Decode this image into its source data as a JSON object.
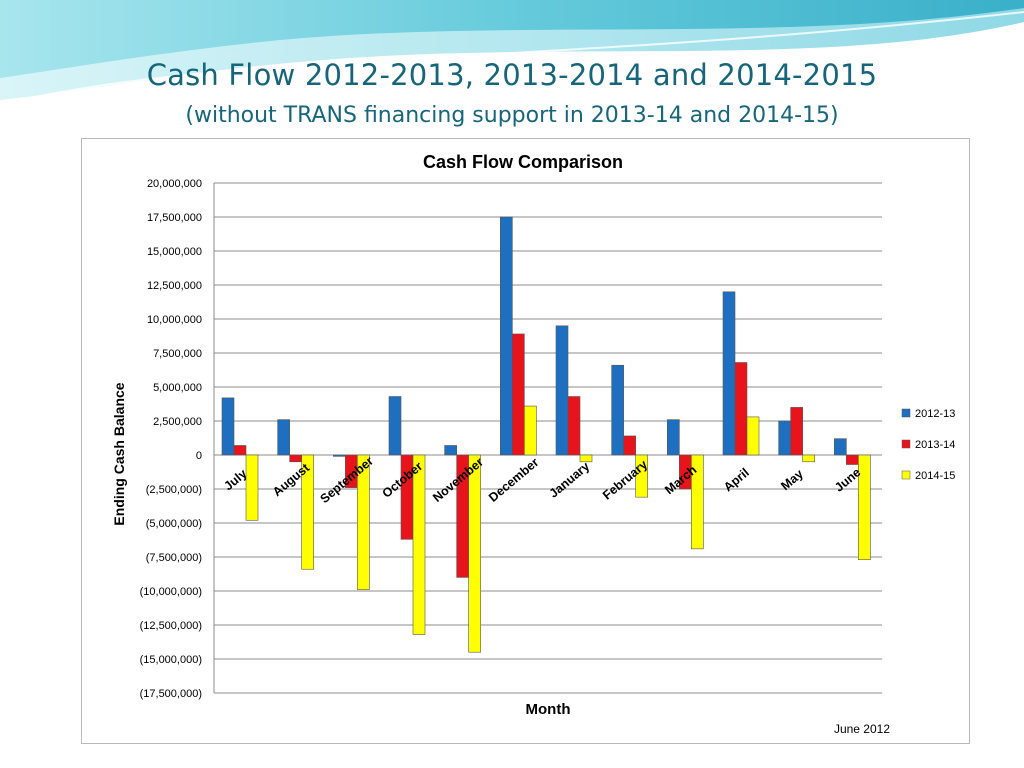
{
  "slide": {
    "title": "Cash Flow 2012-2013, 2013-2014 and 2014-2015",
    "subtitle": "(without TRANS financing support in 2013-14 and 2014-15)",
    "footnote": "June 2012",
    "title_color": "#17657a"
  },
  "chart_data": {
    "type": "bar",
    "title": "Cash Flow Comparison",
    "xlabel": "Month",
    "ylabel": "Ending Cash Balance",
    "categories": [
      "July",
      "August",
      "September",
      "October",
      "November",
      "December",
      "January",
      "February",
      "March",
      "April",
      "May",
      "June"
    ],
    "series": [
      {
        "name": "2012-13",
        "color": "#1f6fc0",
        "values": [
          4200000,
          2600000,
          -100000,
          4300000,
          700000,
          17500000,
          9500000,
          6600000,
          2600000,
          12000000,
          2500000,
          1200000
        ]
      },
      {
        "name": "2013-14",
        "color": "#e8141c",
        "values": [
          700000,
          -500000,
          -2400000,
          -6200000,
          -9000000,
          8900000,
          4300000,
          1400000,
          -2500000,
          6800000,
          3500000,
          -700000
        ]
      },
      {
        "name": "2014-15",
        "color": "#ffff00",
        "values": [
          -4800000,
          -8400000,
          -9900000,
          -13200000,
          -14500000,
          3600000,
          -500000,
          -3100000,
          -6900000,
          2800000,
          -500000,
          -7700000
        ]
      }
    ],
    "ylim": [
      -17500000,
      20000000
    ],
    "ytick_values": [
      20000000,
      17500000,
      15000000,
      12500000,
      10000000,
      7500000,
      5000000,
      2500000,
      0,
      -2500000,
      -5000000,
      -7500000,
      -10000000,
      -12500000,
      -15000000,
      -17500000
    ],
    "ytick_labels": [
      "20,000,000",
      "17,500,000",
      "15,000,000",
      "12,500,000",
      "10,000,000",
      "7,500,000",
      "5,000,000",
      "2,500,000",
      "0",
      "(2,500,000)",
      "(5,000,000)",
      "(7,500,000)",
      "(10,000,000)",
      "(12,500,000)",
      "(15,000,000)",
      "(17,500,000)"
    ],
    "grid": true,
    "legend_position": "right"
  }
}
